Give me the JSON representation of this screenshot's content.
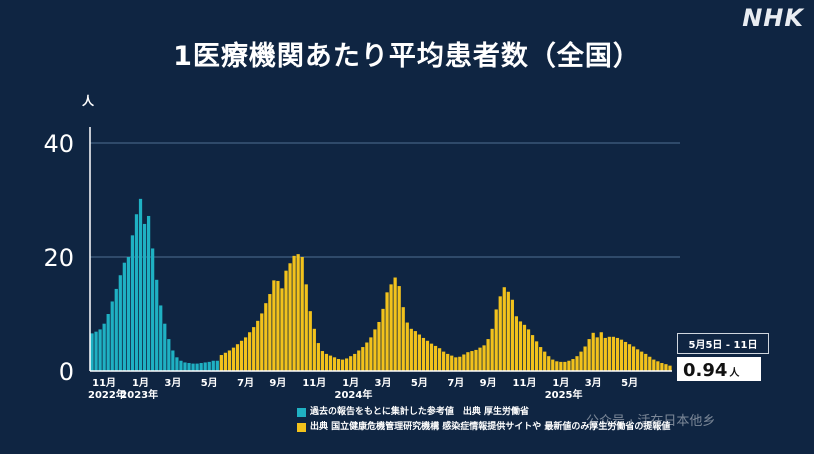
{
  "header": {
    "title": "1医療機関あたり平均患者数（全国）",
    "logo": "NHK",
    "unit": "人"
  },
  "callout": {
    "date": "5月5日 - 11日",
    "value": "0.94",
    "unit": "人"
  },
  "legend": [
    {
      "color": "#1fb1c3",
      "label": "過去の報告をもとに集計した参考値　出典 厚生労働省"
    },
    {
      "color": "#f2c21c",
      "label": "出典 国立健康危機管理研究機構 感染症情報提供サイトや 最新値のみ厚生労働省の提報値"
    }
  ],
  "watermark": "公众号 · 活在日本他乡",
  "chart_data": {
    "type": "bar",
    "ylim": [
      0,
      40
    ],
    "yticks": [
      0,
      20,
      40
    ],
    "grid": true,
    "x_tick_labels": [
      {
        "week": 3,
        "label": "11月"
      },
      {
        "week": 12,
        "label": "1月"
      },
      {
        "week": 20,
        "label": "3月"
      },
      {
        "week": 29,
        "label": "5月"
      },
      {
        "week": 38,
        "label": "7月"
      },
      {
        "week": 46,
        "label": "9月"
      },
      {
        "week": 55,
        "label": "11月"
      },
      {
        "week": 64,
        "label": "1月"
      },
      {
        "week": 72,
        "label": "3月"
      },
      {
        "week": 81,
        "label": "5月"
      },
      {
        "week": 90,
        "label": "7月"
      },
      {
        "week": 98,
        "label": "9月"
      },
      {
        "week": 107,
        "label": "11月"
      },
      {
        "week": 116,
        "label": "1月"
      },
      {
        "week": 124,
        "label": "3月"
      },
      {
        "week": 133,
        "label": "5月"
      }
    ],
    "year_labels": [
      {
        "week": 0,
        "label": "2022年"
      },
      {
        "week": 8,
        "label": "2023年"
      },
      {
        "week": 61,
        "label": "2024年"
      },
      {
        "week": 113,
        "label": "2025年"
      }
    ],
    "series": [
      {
        "name": "過去の報告をもとに集計した参考値",
        "color": "#1fb1c3",
        "start_week": 0,
        "values": [
          6.6,
          6.9,
          7.3,
          8.3,
          10.0,
          12.2,
          14.4,
          16.8,
          19.0,
          20.0,
          23.8,
          27.5,
          30.2,
          25.8,
          27.2,
          21.5,
          16.0,
          11.5,
          8.3,
          5.6,
          3.6,
          2.4,
          1.8,
          1.5,
          1.4,
          1.3,
          1.3,
          1.4,
          1.5,
          1.6,
          1.8,
          1.8
        ]
      },
      {
        "name": "国立健康危機管理研究機構",
        "color": "#f2c21c",
        "start_week": 32,
        "values": [
          2.8,
          3.2,
          3.6,
          4.1,
          4.7,
          5.3,
          5.9,
          6.8,
          7.7,
          8.8,
          10.1,
          11.9,
          13.5,
          15.9,
          15.8,
          14.5,
          17.6,
          18.9,
          20.2,
          20.5,
          20.0,
          15.2,
          10.5,
          7.4,
          4.9,
          3.5,
          3.0,
          2.7,
          2.4,
          2.1,
          2.0,
          2.2,
          2.6,
          3.0,
          3.6,
          4.2,
          5.0,
          5.9,
          7.3,
          8.6,
          10.9,
          13.8,
          15.2,
          16.4,
          14.9,
          11.2,
          8.5,
          7.4,
          7.0,
          6.4,
          5.8,
          5.3,
          4.8,
          4.4,
          4.0,
          3.4,
          3.0,
          2.7,
          2.4,
          2.5,
          2.9,
          3.3,
          3.5,
          3.7,
          4.1,
          4.5,
          5.6,
          7.4,
          10.8,
          13.1,
          14.7,
          13.9,
          12.5,
          9.6,
          8.7,
          8.1,
          7.3,
          6.3,
          5.2,
          4.2,
          3.4,
          2.6,
          2.0,
          1.7,
          1.6,
          1.6,
          1.8,
          2.1,
          2.6,
          3.4,
          4.3,
          5.6,
          6.7,
          5.9,
          6.8,
          5.8,
          6.0,
          6.0,
          5.8,
          5.5,
          5.1,
          4.7,
          4.3,
          3.8,
          3.4,
          3.0,
          2.5,
          2.0,
          1.7,
          1.4,
          1.2,
          0.94
        ]
      }
    ]
  }
}
